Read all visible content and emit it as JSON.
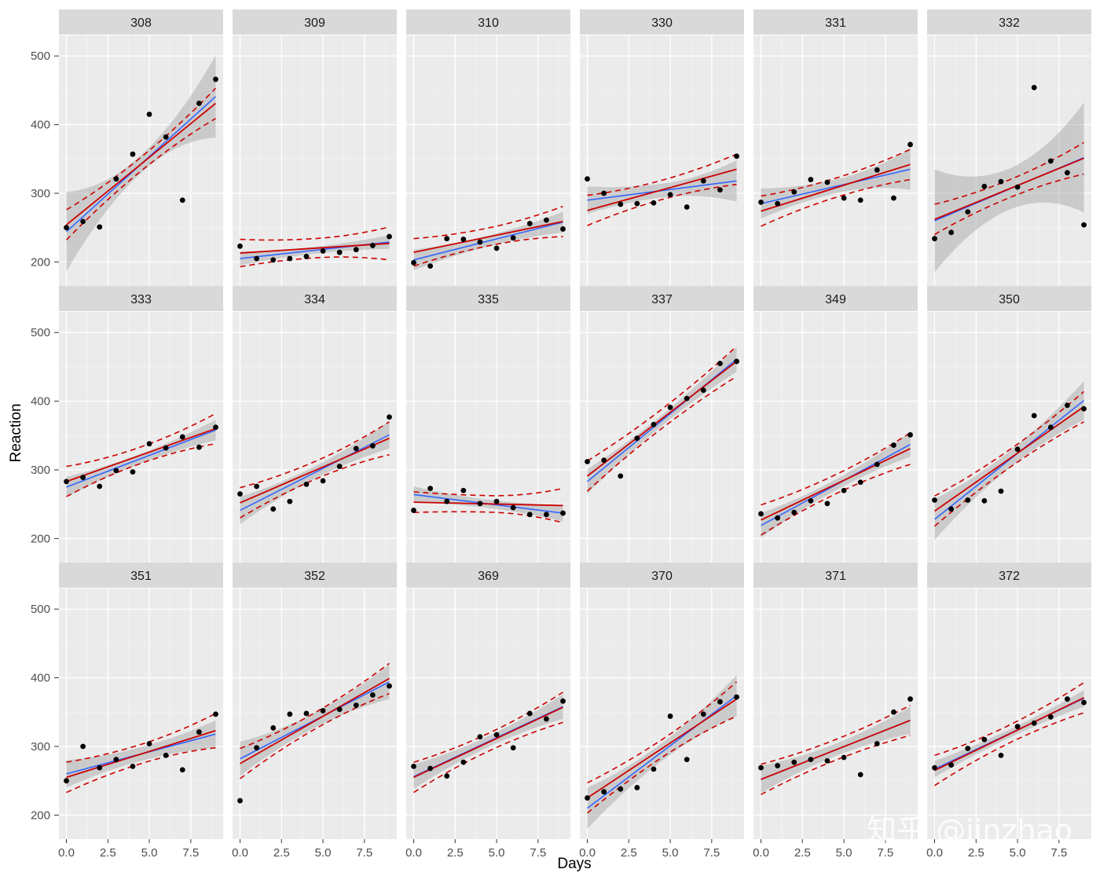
{
  "chart_data": {
    "type": "scatter",
    "description_free": true,
    "xlabel": "Days",
    "ylabel": "Reaction",
    "xlim": [
      -0.45,
      9.45
    ],
    "ylim": [
      165,
      530
    ],
    "x_ticks": [
      0,
      2.5,
      5,
      7.5
    ],
    "x_tick_labels": [
      "0.0",
      "2.5",
      "5.0",
      "7.5"
    ],
    "y_ticks": [
      200,
      300,
      400,
      500
    ],
    "y_tick_labels": [
      "200",
      "300",
      "400",
      "500"
    ],
    "x": [
      0,
      1,
      2,
      3,
      4,
      5,
      6,
      7,
      8,
      9
    ],
    "series_styles": {
      "points": "#000000",
      "blue_fit": "#3366FF",
      "red_fit": "#CC0000",
      "band": "#999999"
    },
    "panels": [
      {
        "subject": "308",
        "values": [
          250,
          259,
          251,
          321,
          357,
          415,
          382,
          290,
          431,
          466
        ],
        "blue": [
          244,
          441
        ],
        "red": [
          254,
          431
        ],
        "band_half": [
          58,
          13,
          60
        ],
        "red_band_half": [
          22,
          10,
          22
        ]
      },
      {
        "subject": "309",
        "values": [
          223,
          205,
          203,
          205,
          208,
          216,
          214,
          218,
          224,
          237
        ],
        "blue": [
          205,
          229
        ],
        "red": [
          213,
          227
        ],
        "band_half": [
          10,
          5,
          10
        ],
        "red_band_half": [
          20,
          14,
          24
        ]
      },
      {
        "subject": "310",
        "values": [
          199,
          194,
          234,
          233,
          229,
          220,
          235,
          256,
          261,
          248
        ],
        "blue": [
          203,
          258
        ],
        "red": [
          214,
          259
        ],
        "band_half": [
          15,
          8,
          15
        ],
        "red_band_half": [
          20,
          13,
          22
        ]
      },
      {
        "subject": "330",
        "values": [
          321,
          300,
          284,
          285,
          286,
          298,
          280,
          318,
          305,
          354
        ],
        "blue": [
          290,
          318
        ],
        "red": [
          275,
          335
        ],
        "band_half": [
          20,
          10,
          30
        ],
        "red_band_half": [
          22,
          14,
          22
        ]
      },
      {
        "subject": "331",
        "values": [
          287,
          285,
          302,
          320,
          316,
          293,
          290,
          334,
          293,
          371
        ],
        "blue": [
          285,
          335
        ],
        "red": [
          274,
          342
        ],
        "band_half": [
          22,
          10,
          30
        ],
        "red_band_half": [
          22,
          14,
          22
        ]
      },
      {
        "subject": "332",
        "values": [
          234,
          243,
          273,
          310,
          317,
          309,
          454,
          347,
          330,
          254
        ],
        "blue": [
          260,
          352
        ],
        "red": [
          262,
          351
        ],
        "band_half": [
          75,
          30,
          80
        ],
        "red_band_half": [
          22,
          13,
          23
        ]
      },
      {
        "subject": "333",
        "values": [
          283,
          289,
          276,
          299,
          297,
          338,
          332,
          348,
          333,
          362
        ],
        "blue": [
          275,
          358
        ],
        "red": [
          283,
          360
        ],
        "band_half": [
          15,
          7,
          15
        ],
        "red_band_half": [
          22,
          12,
          22
        ]
      },
      {
        "subject": "334",
        "values": [
          265,
          276,
          243,
          254,
          279,
          284,
          305,
          331,
          335,
          377
        ],
        "blue": [
          241,
          351
        ],
        "red": [
          252,
          346
        ],
        "band_half": [
          20,
          9,
          20
        ],
        "red_band_half": [
          22,
          13,
          24
        ]
      },
      {
        "subject": "335",
        "values": [
          241,
          273,
          254,
          270,
          251,
          254,
          245,
          235,
          235,
          237
        ],
        "blue": [
          264,
          237
        ],
        "red": [
          253,
          248
        ],
        "band_half": [
          12,
          6,
          12
        ],
        "red_band_half": [
          15,
          12,
          25
        ]
      },
      {
        "subject": "337",
        "values": [
          312,
          314,
          291,
          346,
          366,
          391,
          404,
          416,
          455,
          458
        ],
        "blue": [
          283,
          461
        ],
        "red": [
          291,
          458
        ],
        "band_half": [
          18,
          8,
          18
        ],
        "red_band_half": [
          22,
          14,
          22
        ]
      },
      {
        "subject": "349",
        "values": [
          236,
          230,
          238,
          255,
          251,
          270,
          282,
          308,
          336,
          351
        ],
        "blue": [
          219,
          337
        ],
        "red": [
          227,
          331
        ],
        "band_half": [
          18,
          8,
          18
        ],
        "red_band_half": [
          22,
          14,
          23
        ]
      },
      {
        "subject": "350",
        "values": [
          256,
          243,
          256,
          255,
          269,
          330,
          379,
          362,
          394,
          389
        ],
        "blue": [
          228,
          401
        ],
        "red": [
          240,
          392
        ],
        "band_half": [
          30,
          12,
          28
        ],
        "red_band_half": [
          22,
          13,
          22
        ]
      },
      {
        "subject": "351",
        "values": [
          250,
          300,
          269,
          281,
          271,
          304,
          287,
          266,
          321,
          347
        ],
        "blue": [
          260,
          318
        ],
        "red": [
          255,
          323
        ],
        "band_half": [
          20,
          10,
          20
        ],
        "red_band_half": [
          22,
          14,
          25
        ]
      },
      {
        "subject": "352",
        "values": [
          221,
          298,
          327,
          347,
          348,
          352,
          354,
          360,
          375,
          388
        ],
        "blue": [
          282,
          394
        ],
        "red": [
          275,
          399
        ],
        "band_half": [
          25,
          11,
          25
        ],
        "red_band_half": [
          22,
          12,
          22
        ]
      },
      {
        "subject": "369",
        "values": [
          271,
          268,
          257,
          277,
          314,
          317,
          298,
          348,
          340,
          366
        ],
        "blue": [
          256,
          358
        ],
        "red": [
          255,
          357
        ],
        "band_half": [
          18,
          8,
          18
        ],
        "red_band_half": [
          22,
          13,
          22
        ]
      },
      {
        "subject": "370",
        "values": [
          225,
          234,
          238,
          240,
          267,
          344,
          281,
          347,
          365,
          372
        ],
        "blue": [
          210,
          374
        ],
        "red": [
          225,
          369
        ],
        "band_half": [
          30,
          13,
          30
        ],
        "red_band_half": [
          22,
          13,
          25
        ]
      },
      {
        "subject": "371",
        "values": [
          269,
          272,
          277,
          281,
          279,
          284,
          259,
          304,
          350,
          369
        ],
        "blue": [
          252,
          338
        ],
        "red": [
          252,
          338
        ],
        "band_half": [
          20,
          9,
          20
        ],
        "red_band_half": [
          22,
          15,
          22
        ]
      },
      {
        "subject": "372",
        "values": [
          269,
          273,
          297,
          310,
          287,
          329,
          334,
          343,
          369,
          364
        ],
        "blue": [
          267,
          370
        ],
        "red": [
          265,
          371
        ],
        "band_half": [
          12,
          6,
          12
        ],
        "red_band_half": [
          22,
          13,
          22
        ]
      }
    ]
  },
  "watermark": "知乎 @jinzhao"
}
